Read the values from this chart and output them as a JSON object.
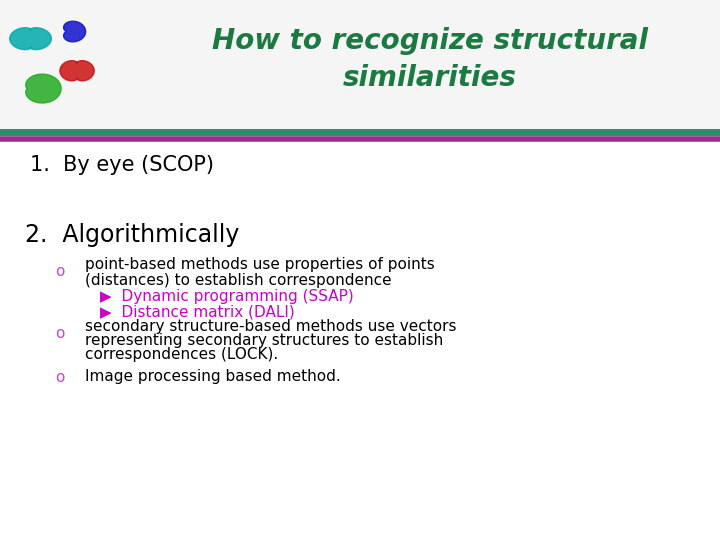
{
  "title_line1": "How to recognize structural",
  "title_line2": "similarities",
  "title_color": "#1a7a40",
  "title_fontsize": 20,
  "background_color": "#ffffff",
  "header_bg_color": "#f5f5f5",
  "header_line_teal_color": "#2e8b6e",
  "header_line_purple_color": "#9b2d8e",
  "item1": "1.  By eye (SCOP)",
  "item2": "2.  Algorithmically",
  "item1_fontsize": 15,
  "item2_fontsize": 17,
  "bullet_color": "#cc44cc",
  "bullet_char": "o",
  "arrow_color": "#cc00cc",
  "arrow_char": "▶",
  "text_color": "#000000",
  "body_fontsize": 11,
  "sub_bullet1_line1": "point-based methods use properties of points",
  "sub_bullet1_line2": "(distances) to establish correspondence",
  "sub_sub1": "Dynamic programming (SSAP)",
  "sub_sub2": "Distance matrix (DALI)",
  "sub_bullet2_line1": "secondary structure-based methods use vectors",
  "sub_bullet2_line2": "representing secondary structures to establish",
  "sub_bullet2_line3": "correspondences (LOCK).",
  "sub_bullet3": "Image processing based method."
}
